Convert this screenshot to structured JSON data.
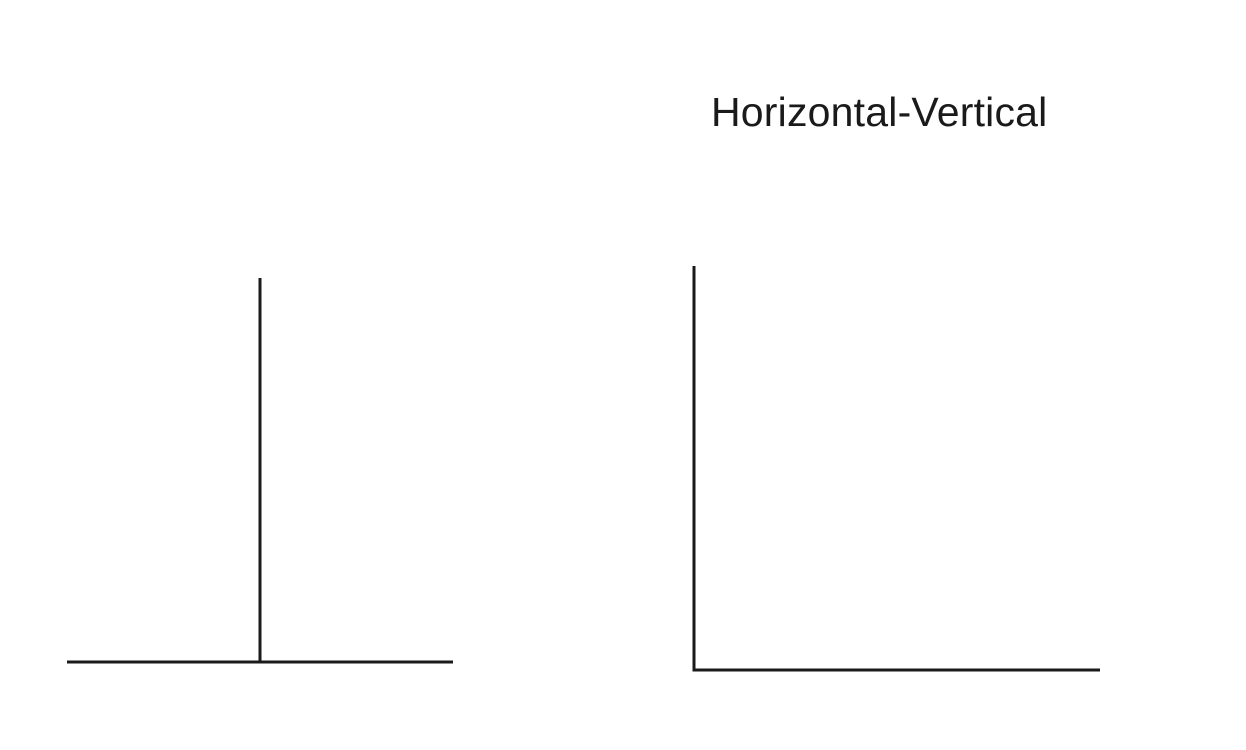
{
  "title": "Horizontal-Vertical",
  "figures": [
    {
      "name": "inverted-t-figure",
      "shape": "inverted-T"
    },
    {
      "name": "l-figure",
      "shape": "L"
    }
  ],
  "colors": {
    "background": "#ffffff",
    "line": "#1a1a1a",
    "text": "#1a1a1a"
  }
}
